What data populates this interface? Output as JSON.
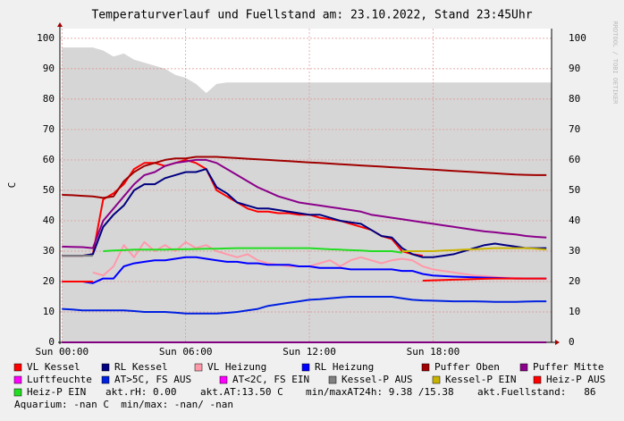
{
  "chart_data": {
    "type": "line",
    "title": "Temperaturverlauf und Fuellstand am: 23.10.2022, Stand 23:45Uhr",
    "y_label": "C",
    "watermark": "RRDTOOL / TOBI OETIKER",
    "grid": true,
    "xlim": [
      -0.1,
      23.75
    ],
    "ylim": [
      0,
      103.2
    ],
    "xticks": [
      {
        "value": 0,
        "label": "Sun 00:00"
      },
      {
        "value": 6,
        "label": "Sun 06:00"
      },
      {
        "value": 12,
        "label": "Sun 12:00"
      },
      {
        "value": 18,
        "label": "Sun 18:00"
      }
    ],
    "yticks": [
      0,
      10,
      20,
      30,
      40,
      50,
      60,
      70,
      80,
      90,
      100
    ],
    "x": [
      0,
      0.5,
      1,
      1.5,
      2,
      2.5,
      3,
      3.5,
      4,
      4.5,
      5,
      5.5,
      6,
      6.5,
      7,
      7.5,
      8,
      8.5,
      9,
      9.5,
      10,
      10.5,
      11,
      11.5,
      12,
      12.5,
      13,
      13.5,
      14,
      14.5,
      15,
      15.5,
      16,
      16.5,
      17,
      17.5,
      18,
      18.5,
      19,
      19.5,
      20,
      20.5,
      21,
      21.5,
      22,
      22.5,
      23,
      23.5
    ],
    "area": {
      "color": "#d6d6d6",
      "values": [
        97,
        97,
        97,
        97,
        96,
        94,
        95,
        93,
        92,
        91,
        90,
        88,
        87,
        85,
        82,
        85,
        85.5,
        85.5,
        85.5,
        85.5,
        85.5,
        85.5,
        85.5,
        85.5,
        85.5,
        85.5,
        85.5,
        85.5,
        85.5,
        85.5,
        85.5,
        85.5,
        85.5,
        85.5,
        85.5,
        85.5,
        85.5,
        85.5,
        85.5,
        85.5,
        85.5,
        85.5,
        85.5,
        85.5,
        85.5,
        85.5,
        85.5,
        85.5
      ]
    },
    "series": [
      {
        "name": "VL Kessel",
        "color": "#ff0000",
        "values": [
          28.5,
          28.5,
          28.5,
          29,
          47,
          49,
          52,
          57,
          59,
          59,
          58,
          59,
          60,
          59,
          57,
          50,
          48,
          46,
          44,
          43,
          43,
          42.5,
          42.5,
          42,
          42,
          41,
          40.5,
          40,
          39,
          38,
          37,
          35,
          34,
          30,
          29,
          28.5,
          null,
          null,
          null,
          null,
          null,
          null,
          null,
          null,
          null,
          null,
          null,
          null
        ]
      },
      {
        "name": "RL Kessel",
        "color": "#000080",
        "values": [
          28.5,
          28.5,
          28.5,
          29,
          38,
          42,
          45,
          50,
          52,
          52,
          54,
          55,
          56,
          56,
          57,
          51,
          49,
          46,
          45,
          44,
          44,
          43.5,
          43,
          42.5,
          42,
          42,
          41,
          40,
          39.5,
          39,
          37,
          35,
          34.5,
          31,
          29,
          28,
          28,
          28.5,
          29,
          30,
          31,
          32,
          32.5,
          32,
          31.5,
          31,
          31,
          31
        ]
      },
      {
        "name": "VL Heizung",
        "color": "#ff99aa",
        "values": [
          null,
          null,
          null,
          23,
          22,
          25,
          32,
          28,
          33,
          30,
          32,
          30,
          33,
          31,
          32,
          30,
          29,
          28,
          29,
          27,
          26,
          25.5,
          25,
          25,
          25,
          26,
          27,
          25,
          27,
          28,
          27,
          26,
          27,
          27.5,
          27,
          25,
          24,
          23.5,
          23,
          22.5,
          22,
          21.8,
          21.5,
          21.3,
          21.2,
          21,
          21,
          21
        ]
      },
      {
        "name": "RL Heizung",
        "color": "#0000ff",
        "values": [
          20,
          20,
          20,
          19.5,
          21,
          21,
          25,
          26,
          26.5,
          27,
          27,
          27.5,
          28,
          28,
          27.5,
          27,
          26.5,
          26.5,
          26,
          26,
          25.5,
          25.5,
          25.5,
          25,
          25,
          24.5,
          24.5,
          24.5,
          24,
          24,
          24,
          24,
          24,
          23.5,
          23.5,
          22.5,
          22,
          21.8,
          21.6,
          21.5,
          21.4,
          21.3,
          21.2,
          21.1,
          21,
          21,
          21,
          21
        ]
      },
      {
        "name": "Puffer Oben",
        "color": "#a00000",
        "values": [
          48.5,
          48.4,
          48.2,
          48,
          47.5,
          48,
          53,
          56,
          58,
          59,
          60,
          60.5,
          60.5,
          61,
          61,
          61,
          60.8,
          60.6,
          60.4,
          60.2,
          60,
          59.8,
          59.6,
          59.4,
          59.2,
          59,
          58.8,
          58.6,
          58.4,
          58.2,
          58,
          57.8,
          57.6,
          57.4,
          57.2,
          57,
          56.8,
          56.6,
          56.4,
          56.2,
          56,
          55.8,
          55.6,
          55.4,
          55.2,
          55.1,
          55,
          55
        ]
      },
      {
        "name": "Puffer Mitte",
        "color": "#8b008b",
        "values": [
          31.5,
          31.4,
          31.3,
          31,
          40,
          44,
          48,
          52,
          55,
          56,
          58,
          59,
          59.5,
          60,
          60,
          59,
          57,
          55,
          53,
          51,
          49.5,
          48,
          47,
          46,
          45.5,
          45,
          44.5,
          44,
          43.5,
          43,
          42,
          41.5,
          41,
          40.5,
          40,
          39.5,
          39,
          38.5,
          38,
          37.5,
          37,
          36.5,
          36.2,
          35.8,
          35.5,
          35,
          34.7,
          34.5
        ]
      },
      {
        "name": "Luftfeuchte",
        "color": "#ff00ff",
        "values": [
          0,
          0,
          0,
          0,
          0,
          0,
          0,
          0,
          0,
          0,
          0,
          0,
          0,
          0,
          0,
          0,
          0,
          0,
          0,
          0,
          0,
          0,
          0,
          0,
          0,
          0,
          0,
          0,
          0,
          0,
          0,
          0,
          0,
          0,
          0,
          0,
          0,
          0,
          0,
          0,
          0,
          0,
          0,
          0,
          0,
          0,
          0,
          0
        ]
      },
      {
        "name": "AT>5C, FS AUS",
        "color": "#0020e0",
        "values": [
          11,
          10.8,
          10.5,
          10.5,
          10.5,
          10.5,
          10.5,
          10.3,
          10,
          10,
          10,
          9.8,
          9.5,
          9.5,
          9.5,
          9.5,
          9.7,
          10,
          10.5,
          11,
          12,
          12.5,
          13,
          13.5,
          14,
          14.2,
          14.5,
          14.8,
          15,
          15,
          15,
          15,
          15,
          14.5,
          14,
          13.8,
          13.7,
          13.6,
          13.5,
          13.5,
          13.5,
          13.4,
          13.3,
          13.3,
          13.3,
          13.4,
          13.5,
          13.5
        ]
      },
      {
        "name": "AT<2C, FS EIN",
        "color": "#ff00ff",
        "values": [
          null,
          null,
          null,
          null,
          null,
          null,
          null,
          null,
          null,
          null,
          null,
          null,
          null,
          null,
          null,
          null,
          null,
          null,
          null,
          null,
          null,
          null,
          null,
          null,
          null,
          null,
          null,
          null,
          null,
          null,
          null,
          null,
          null,
          null,
          null,
          null,
          null,
          null,
          null,
          null,
          null,
          null,
          null,
          null,
          null,
          null,
          null,
          null
        ]
      },
      {
        "name": "Kessel-P AUS",
        "color": "#808080",
        "values": [
          28.5,
          28.5,
          28.5,
          28.5,
          null,
          null,
          null,
          null,
          null,
          null,
          null,
          null,
          null,
          null,
          null,
          null,
          null,
          null,
          null,
          null,
          null,
          null,
          null,
          null,
          null,
          null,
          null,
          null,
          null,
          null,
          null,
          null,
          null,
          null,
          null,
          null,
          null,
          null,
          null,
          null,
          null,
          null,
          null,
          null,
          null,
          null,
          null,
          null
        ]
      },
      {
        "name": "Kessel-P EIN",
        "color": "#c8b400",
        "values": [
          null,
          null,
          null,
          null,
          null,
          null,
          null,
          null,
          null,
          null,
          null,
          null,
          null,
          null,
          null,
          null,
          null,
          null,
          null,
          null,
          null,
          null,
          null,
          null,
          null,
          null,
          null,
          null,
          null,
          null,
          null,
          null,
          null,
          30,
          30,
          30,
          30,
          30.2,
          30.3,
          30.5,
          30.6,
          30.8,
          31,
          31,
          31,
          31,
          30.8,
          30.5
        ]
      },
      {
        "name": "Heiz-P AUS",
        "color": "#ff0000",
        "values": [
          20,
          20,
          20,
          20,
          null,
          null,
          null,
          null,
          null,
          null,
          null,
          null,
          null,
          null,
          null,
          null,
          null,
          null,
          null,
          null,
          null,
          null,
          null,
          null,
          null,
          null,
          null,
          null,
          null,
          null,
          null,
          null,
          null,
          null,
          null,
          20.3,
          20.4,
          20.5,
          20.6,
          20.7,
          20.8,
          20.9,
          21,
          21,
          21,
          21,
          21,
          21
        ]
      },
      {
        "name": "Heiz-P EIN",
        "color": "#22dd22",
        "values": [
          null,
          null,
          null,
          null,
          30,
          30.2,
          30.3,
          30.5,
          30.5,
          30.5,
          30.5,
          30.6,
          30.6,
          30.7,
          30.8,
          30.8,
          30.9,
          31,
          31,
          31,
          31,
          31,
          31,
          31,
          31,
          30.8,
          30.6,
          30.5,
          30.3,
          30.2,
          30,
          30,
          30,
          29.5,
          null,
          null,
          null,
          null,
          null,
          null,
          null,
          null,
          null,
          null,
          null,
          null,
          null,
          null
        ]
      }
    ],
    "legend_stats": [
      "akt.rH: 0.00",
      "akt.AT:13.50 C",
      "min/maxAT24h: 9.38 /15.38",
      "akt.Fuellstand:   86",
      "Aquarium: -nan C  min/max: -nan/ -nan"
    ]
  }
}
